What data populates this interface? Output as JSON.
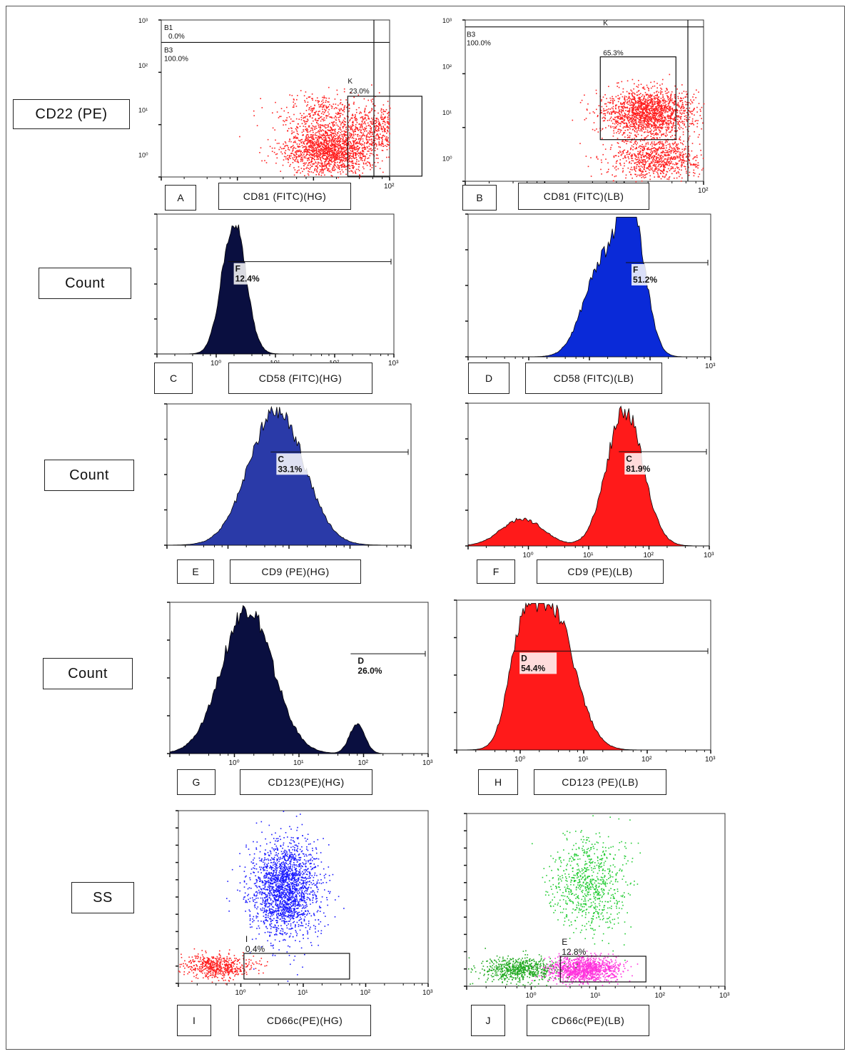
{
  "row_labels": [
    "CD22 (PE)",
    "Count",
    "Count",
    "Count",
    "SS"
  ],
  "chart_data": [
    {
      "id": "A",
      "type": "scatter",
      "panel_label": "A",
      "xlabel": "CD81 (FITC)(HG)",
      "color": "#ff2020",
      "log_scale": true,
      "y_ticks": [
        "10³",
        "10²",
        "10¹",
        "10⁰"
      ],
      "x_ticks": [
        "10²"
      ],
      "gates": [
        {
          "name": "B1",
          "value": "0.0%"
        },
        {
          "name": "B3",
          "value": "100.0%"
        },
        {
          "name": "K",
          "value": "23.0%"
        }
      ],
      "clusters": [
        {
          "cx_decade": 1.2,
          "cy_decade": 0.1,
          "fraction": 0.62
        },
        {
          "cx_decade": 1.9,
          "cy_decade": 0.6,
          "fraction": 0.23
        },
        {
          "cx_decade": 1.1,
          "cy_decade": 0.9,
          "fraction": 0.15
        }
      ]
    },
    {
      "id": "B",
      "type": "scatter",
      "panel_label": "B",
      "xlabel": "CD81 (FITC)(LB)",
      "color": "#ff2020",
      "log_scale": true,
      "y_ticks": [
        "10³",
        "10²",
        "10¹",
        "10⁰"
      ],
      "x_ticks": [
        "10²"
      ],
      "gates": [
        {
          "name": "B3",
          "value": "100.0%"
        },
        {
          "name": "K",
          "value": "65.3%"
        }
      ],
      "clusters": [
        {
          "cx_decade": 1.3,
          "cy_decade": 1.0,
          "fraction": 0.653
        },
        {
          "cx_decade": 1.4,
          "cy_decade": 0.0,
          "fraction": 0.347
        }
      ]
    },
    {
      "id": "C",
      "type": "area",
      "panel_label": "C",
      "xlabel": "CD58 (FITC)(HG)",
      "color": "#0a0f40",
      "x_ticks": [
        "10⁰",
        "10¹",
        "10²",
        "10³"
      ],
      "gate": {
        "name": "F",
        "value": "12.4%"
      },
      "peaks": [
        {
          "x_decade": 0.3,
          "height": 1.0,
          "width": 0.2
        }
      ]
    },
    {
      "id": "D",
      "type": "area",
      "panel_label": "D",
      "xlabel": "CD58 (FITC)(LB)",
      "color": "#0a2ad8",
      "x_ticks": [
        "10³"
      ],
      "gate": {
        "name": "F",
        "value": "51.2%"
      },
      "peaks": [
        {
          "x_decade": 1.2,
          "height": 0.66,
          "width": 0.3
        },
        {
          "x_decade": 1.7,
          "height": 1.0,
          "width": 0.22
        }
      ]
    },
    {
      "id": "E",
      "type": "area",
      "panel_label": "E",
      "xlabel": "CD9 (PE)(HG)",
      "color": "#2a3aa8",
      "x_ticks": [],
      "gate": {
        "name": "C",
        "value": "33.1%"
      },
      "peaks": [
        {
          "x_decade": 0.8,
          "height": 1.0,
          "width": 0.45
        }
      ]
    },
    {
      "id": "F",
      "type": "area",
      "panel_label": "F",
      "xlabel": "CD9 (PE)(LB)",
      "color": "#ff1a1a",
      "x_ticks": [
        "10⁰",
        "10¹",
        "10²",
        "10³"
      ],
      "gate": {
        "name": "C",
        "value": "81.9%"
      },
      "peaks": [
        {
          "x_decade": -0.1,
          "height": 0.2,
          "width": 0.35
        },
        {
          "x_decade": 1.6,
          "height": 1.0,
          "width": 0.3
        }
      ]
    },
    {
      "id": "G",
      "type": "area",
      "panel_label": "G",
      "xlabel": "CD123(PE)(HG)",
      "color": "#0a0f40",
      "x_ticks": [
        "10⁰",
        "10¹",
        "10²",
        "10³"
      ],
      "gate": {
        "name": "D",
        "value": "26.0%"
      },
      "peaks": [
        {
          "x_decade": 0.2,
          "height": 1.0,
          "width": 0.4
        },
        {
          "x_decade": 1.9,
          "height": 0.2,
          "width": 0.12
        }
      ]
    },
    {
      "id": "H",
      "type": "area",
      "panel_label": "H",
      "xlabel": "CD123 (PE)(LB)",
      "color": "#ff1a1a",
      "x_ticks": [
        "10⁰",
        "10¹",
        "10²",
        "10³"
      ],
      "gate": {
        "name": "D",
        "value": "54.4%"
      },
      "peaks": [
        {
          "x_decade": 0.5,
          "height": 1.0,
          "width": 0.35
        },
        {
          "x_decade": 0.0,
          "height": 0.55,
          "width": 0.2
        }
      ]
    },
    {
      "id": "I",
      "type": "scatter",
      "panel_label": "I",
      "xlabel": "CD66c(PE)(HG)",
      "color": "#1a1aff",
      "log_scale": true,
      "x_ticks": [
        "10⁰",
        "10¹",
        "10²",
        "10³"
      ],
      "gate": {
        "name": "I",
        "value": "0.4%"
      },
      "clusters": [
        {
          "cx_decade": 0.7,
          "cy_frac": 0.55,
          "fraction": 0.78,
          "color": "#1a1aff"
        },
        {
          "cx_decade": -0.4,
          "cy_frac": 0.1,
          "fraction": 0.22,
          "color": "#ff2020"
        }
      ]
    },
    {
      "id": "J",
      "type": "scatter",
      "panel_label": "J",
      "xlabel": "CD66c(PE)(LB)",
      "color": "#22cc33",
      "log_scale": true,
      "x_ticks": [
        "10⁰",
        "10¹",
        "10²",
        "10³"
      ],
      "gate": {
        "name": "E",
        "value": "12.8%"
      },
      "clusters": [
        {
          "cx_decade": 0.9,
          "cy_frac": 0.6,
          "fraction": 0.3,
          "color": "#22cc33"
        },
        {
          "cx_decade": 0.8,
          "cy_frac": 0.1,
          "fraction": 0.45,
          "color": "#ff33dd"
        },
        {
          "cx_decade": -0.2,
          "cy_frac": 0.1,
          "fraction": 0.25,
          "color": "#22aa22"
        }
      ]
    }
  ]
}
